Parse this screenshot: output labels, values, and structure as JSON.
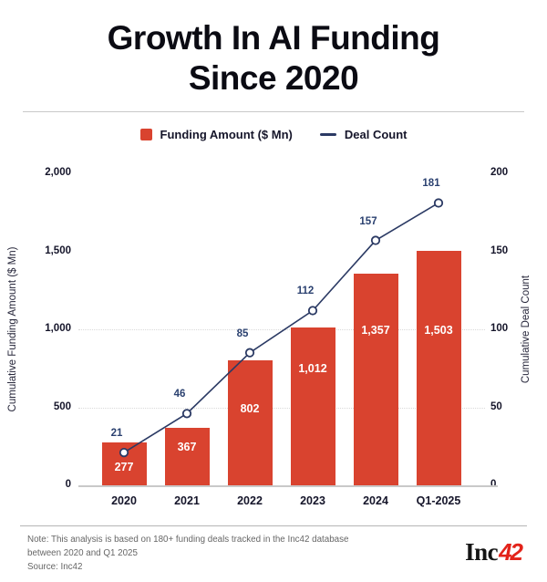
{
  "header": {
    "title_line1": "Growth In AI Funding",
    "title_line2": "Since 2020"
  },
  "legend": {
    "items": [
      {
        "label": "Funding Amount ($ Mn)",
        "swatch": "square",
        "color": "#d9432f"
      },
      {
        "label": "Deal Count",
        "swatch": "line",
        "color": "#2b3a64"
      }
    ]
  },
  "chart_data": {
    "type": "bar+line combo",
    "categories": [
      "2020",
      "2021",
      "2022",
      "2023",
      "2024",
      "Q1-2025"
    ],
    "series": [
      {
        "name": "Funding Amount ($ Mn)",
        "type": "bar",
        "axis": "left",
        "values": [
          277,
          367,
          802,
          1012,
          1357,
          1503
        ],
        "labels": [
          "277",
          "367",
          "802",
          "1,012",
          "1,357",
          "1,503"
        ],
        "color": "#d9432f"
      },
      {
        "name": "Deal Count",
        "type": "line",
        "axis": "right",
        "values": [
          21,
          46,
          85,
          112,
          157,
          181
        ],
        "labels": [
          "21",
          "46",
          "85",
          "112",
          "157",
          "181"
        ],
        "color": "#2b3a64",
        "marker": "open-circle"
      }
    ],
    "left_axis": {
      "title": "Cumulative Funding Amount ($ Mn)",
      "range": [
        0,
        2000
      ],
      "ticks": [
        {
          "value": 2000,
          "label": "2,000"
        },
        {
          "value": 1500,
          "label": "1,500"
        },
        {
          "value": 1000,
          "label": "1,000"
        },
        {
          "value": 500,
          "label": "500"
        },
        {
          "value": 0,
          "label": "0"
        }
      ]
    },
    "right_axis": {
      "title": "Cumulative Deal Count",
      "range": [
        0,
        200
      ],
      "ticks": [
        {
          "value": 200,
          "label": "200"
        },
        {
          "value": 150,
          "label": "150"
        },
        {
          "value": 100,
          "label": "100"
        },
        {
          "value": 50,
          "label": "50"
        },
        {
          "value": 0,
          "label": "0"
        }
      ]
    },
    "gridlines_left_values": [
      1000,
      500
    ],
    "grid_style": "dotted",
    "legend_position": "top-center"
  },
  "footer": {
    "note_line1": "Note: This analysis is based on 180+ funding deals tracked in the Inc42 database",
    "note_line2": "between 2020 and Q1 2025",
    "source": "Source: Inc42",
    "logo_part1": "Inc",
    "logo_part2": "42"
  },
  "colors": {
    "bar": "#d9432f",
    "line": "#2b3a64",
    "point_label": "#2b4170",
    "title": "#0b0b13",
    "tick_label": "#15152a",
    "grid": "#d9d9d9",
    "note": "#666666",
    "logo_red": "#e3231a"
  }
}
